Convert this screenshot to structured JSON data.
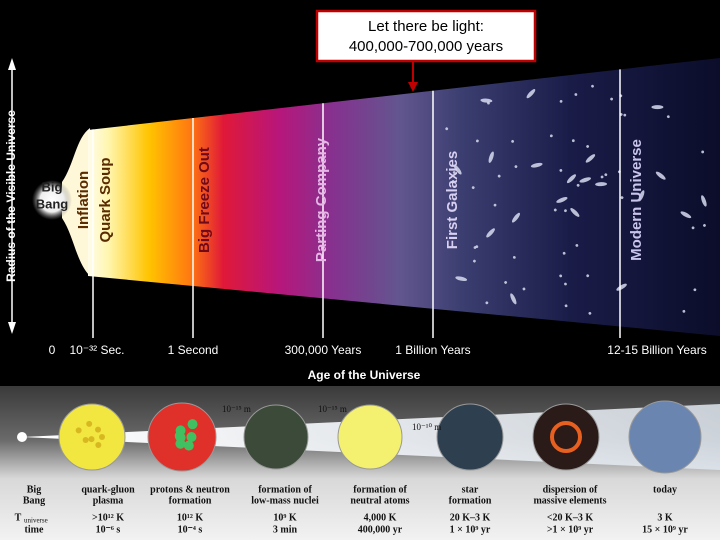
{
  "callout": {
    "lines": [
      "Let there be light:",
      "400,000-700,000 years"
    ]
  },
  "y_axis_label": "Radius of the Visible Universe",
  "big_bang_label": [
    "Big",
    "Bang"
  ],
  "stages": [
    "Inflation",
    "Quark Soup",
    "Big Freeze Out",
    "Parting Company",
    "First Galaxies",
    "Modern Universe"
  ],
  "time_axis": {
    "title": "Age of the Universe",
    "labels": [
      "0",
      "10⁻³² Sec.",
      "1 Second",
      "300,000 Years",
      "1 Billion Years",
      "12-15 Billion Years"
    ]
  },
  "strip": {
    "scales": [
      "10⁻¹⁵ m",
      "10⁻¹⁵ m",
      "10⁻¹⁰ m"
    ],
    "columns": [
      {
        "name": [
          "Big",
          "Bang"
        ],
        "temp": "T",
        "temp_sub": "universe",
        "time": "time"
      },
      {
        "name": [
          "quark-gluon",
          "plasma"
        ],
        "temp": ">10¹² K",
        "time": "10⁻⁶ s"
      },
      {
        "name": [
          "protons & neutron",
          "formation"
        ],
        "temp": "10¹² K",
        "time": "10⁻⁴ s"
      },
      {
        "name": [
          "formation of",
          "low-mass nuclei"
        ],
        "temp": "10⁹ K",
        "time": "3 min"
      },
      {
        "name": [
          "formation of",
          "neutral atoms"
        ],
        "temp": "4,000 K",
        "time": "400,000 yr"
      },
      {
        "name": [
          "star",
          "formation"
        ],
        "temp": "20 K–3 K",
        "time": "1 × 10⁹ yr"
      },
      {
        "name": [
          "dispersion of",
          "massive elements"
        ],
        "temp": "<20 K–3 K",
        "time": ">1 × 10⁹ yr"
      },
      {
        "name": [
          "today"
        ],
        "temp": "3 K",
        "time": "15 × 10⁹ yr"
      }
    ]
  }
}
